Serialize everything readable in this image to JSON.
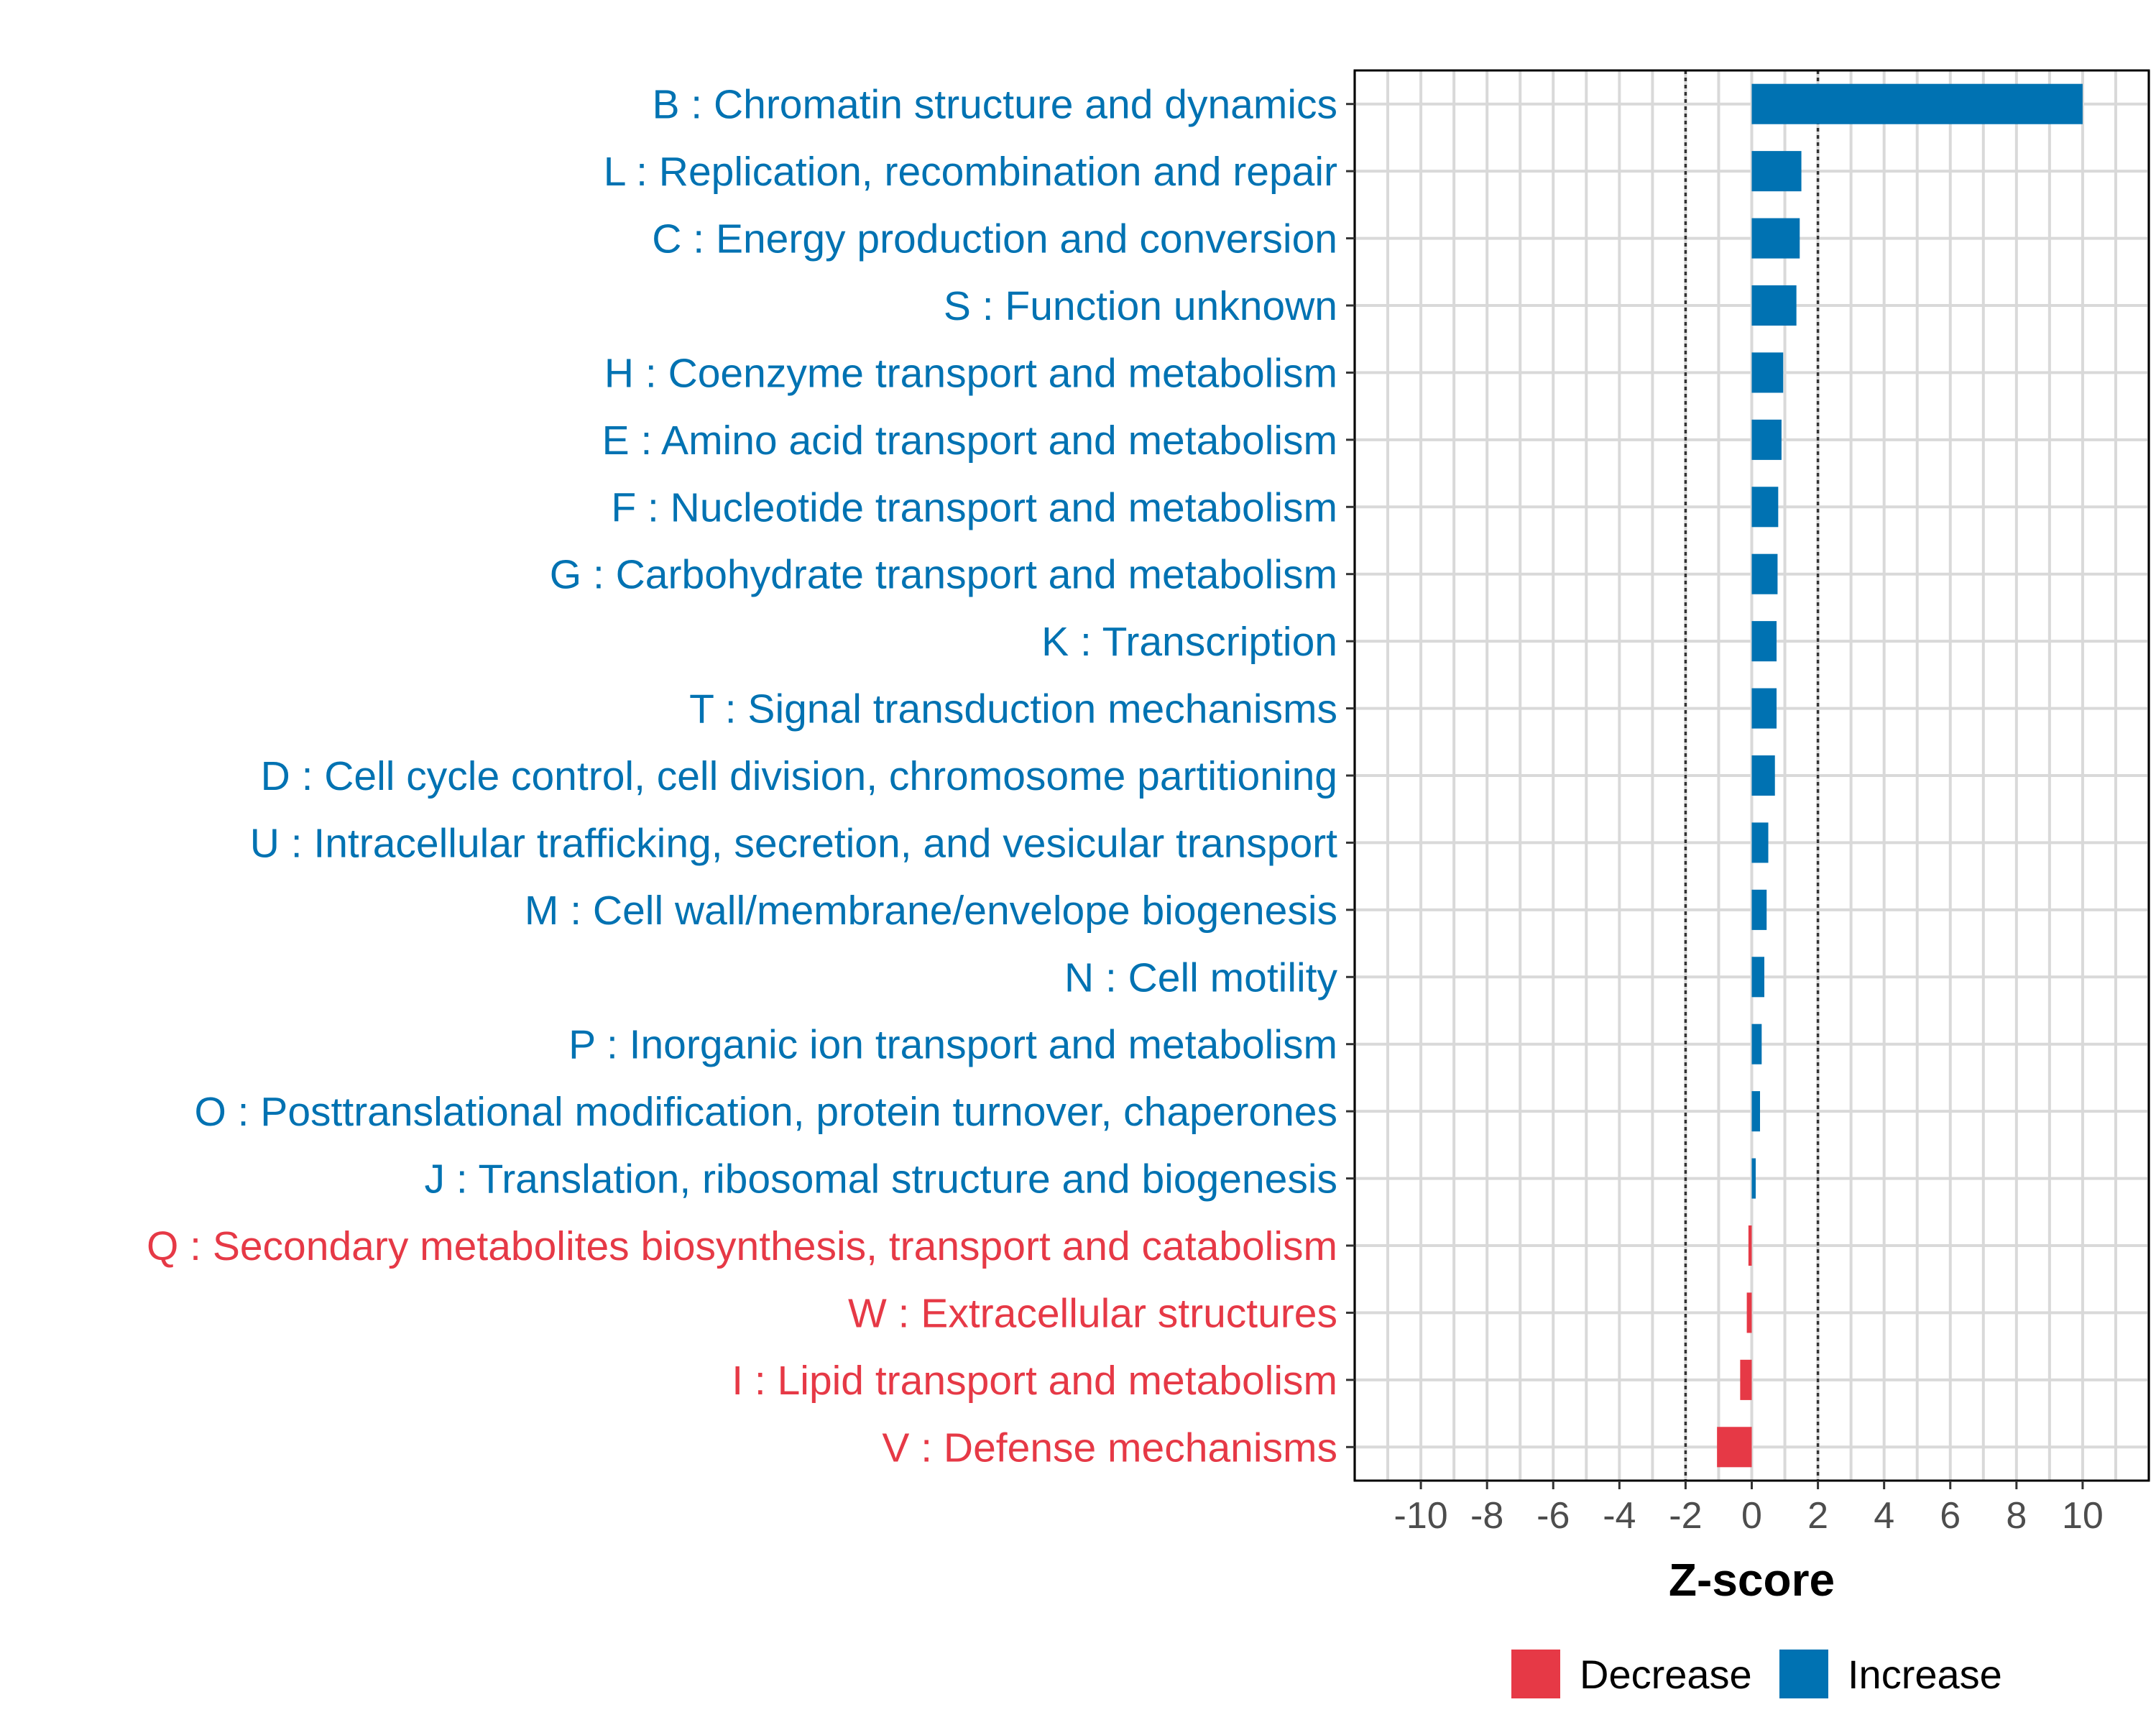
{
  "chart_data": {
    "type": "bar",
    "orientation": "horizontal",
    "xlabel": "Z-score",
    "xlim": [
      -12,
      12
    ],
    "xticks": [
      -10,
      -8,
      -6,
      -4,
      -2,
      0,
      2,
      4,
      6,
      8,
      10
    ],
    "thresholds": [
      -2,
      2
    ],
    "categories": [
      "B : Chromatin structure and dynamics",
      "L : Replication, recombination and repair",
      "C : Energy production and conversion",
      "S : Function unknown",
      "H : Coenzyme transport and metabolism",
      "E : Amino acid transport and metabolism",
      "F : Nucleotide transport and metabolism",
      "G : Carbohydrate transport and metabolism",
      "K : Transcription",
      "T : Signal transduction mechanisms",
      "D : Cell cycle control, cell division, chromosome partitioning",
      "U : Intracellular trafficking, secretion, and vesicular transport",
      "M : Cell wall/membrane/envelope biogenesis",
      "N : Cell motility",
      "P : Inorganic ion transport and metabolism",
      "O : Posttranslational modification, protein turnover, chaperones",
      "J : Translation, ribosomal structure and biogenesis",
      "Q : Secondary metabolites biosynthesis, transport and catabolism",
      "W : Extracellular structures",
      "I : Lipid transport and metabolism",
      "V : Defense mechanisms"
    ],
    "values": [
      10.0,
      1.5,
      1.45,
      1.35,
      0.95,
      0.9,
      0.8,
      0.78,
      0.75,
      0.75,
      0.7,
      0.5,
      0.45,
      0.38,
      0.3,
      0.25,
      0.12,
      -0.1,
      -0.15,
      -0.35,
      -1.05
    ],
    "groups": [
      "Increase",
      "Increase",
      "Increase",
      "Increase",
      "Increase",
      "Increase",
      "Increase",
      "Increase",
      "Increase",
      "Increase",
      "Increase",
      "Increase",
      "Increase",
      "Increase",
      "Increase",
      "Increase",
      "Increase",
      "Decrease",
      "Decrease",
      "Decrease",
      "Decrease"
    ],
    "legend": {
      "position": "bottom",
      "items": [
        {
          "label": "Decrease",
          "color": "#E63946"
        },
        {
          "label": "Increase",
          "color": "#0072B2"
        }
      ]
    },
    "colors": {
      "Increase": "#0072B2",
      "Decrease": "#E63946"
    }
  }
}
